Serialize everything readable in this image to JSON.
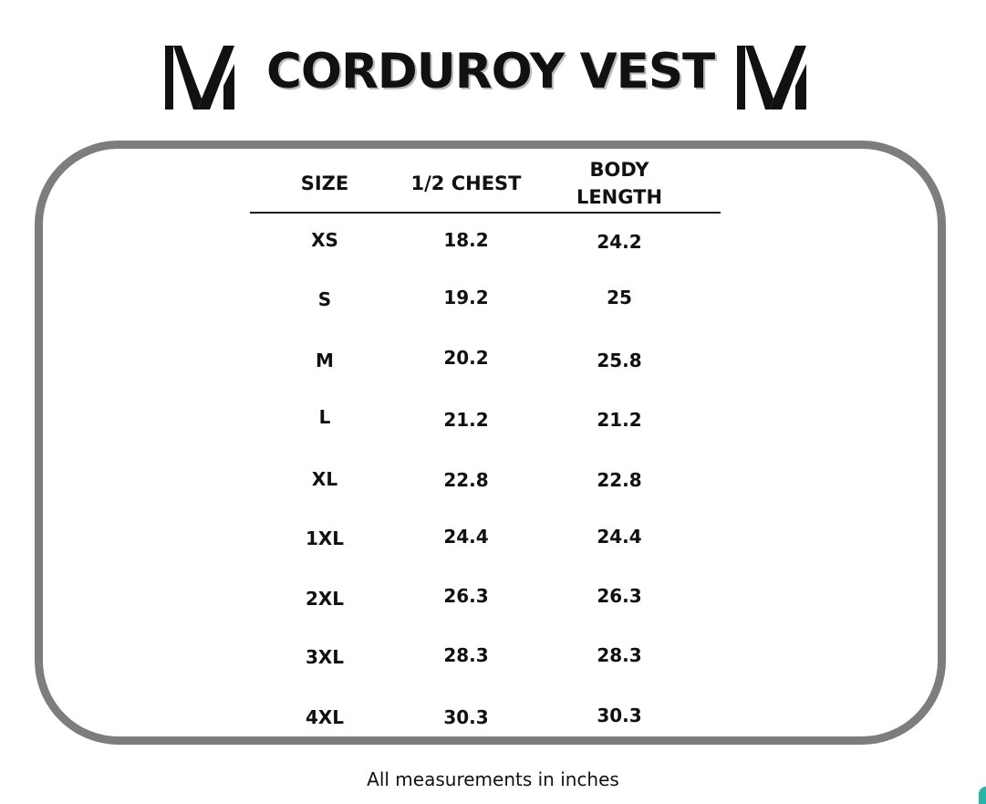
{
  "title": "CORDUROY VEST",
  "logo_icon": "v-monogram-icon",
  "table": {
    "headers": {
      "size": "SIZE",
      "chest": "1/2 CHEST",
      "body_line1": "BODY",
      "body_line2": "LENGTH"
    },
    "rows": [
      {
        "size": "XS",
        "chest": "18.2",
        "body": "24.2"
      },
      {
        "size": "S",
        "chest": "19.2",
        "body": "25"
      },
      {
        "size": "M",
        "chest": "20.2",
        "body": "25.8"
      },
      {
        "size": "L",
        "chest": "21.2",
        "body": "21.2"
      },
      {
        "size": "XL",
        "chest": "22.8",
        "body": "22.8"
      },
      {
        "size": "1XL",
        "chest": "24.4",
        "body": "24.4"
      },
      {
        "size": "2XL",
        "chest": "26.3",
        "body": "26.3"
      },
      {
        "size": "3XL",
        "chest": "28.3",
        "body": "28.3"
      },
      {
        "size": "4XL",
        "chest": "30.3",
        "body": "30.3"
      }
    ]
  },
  "footer": "All measurements in inches",
  "colors": {
    "frame": "#7d7d7d",
    "text": "#111111",
    "title_shadow": "#b9b9b9",
    "corner_accent": "#2bb3a8"
  }
}
